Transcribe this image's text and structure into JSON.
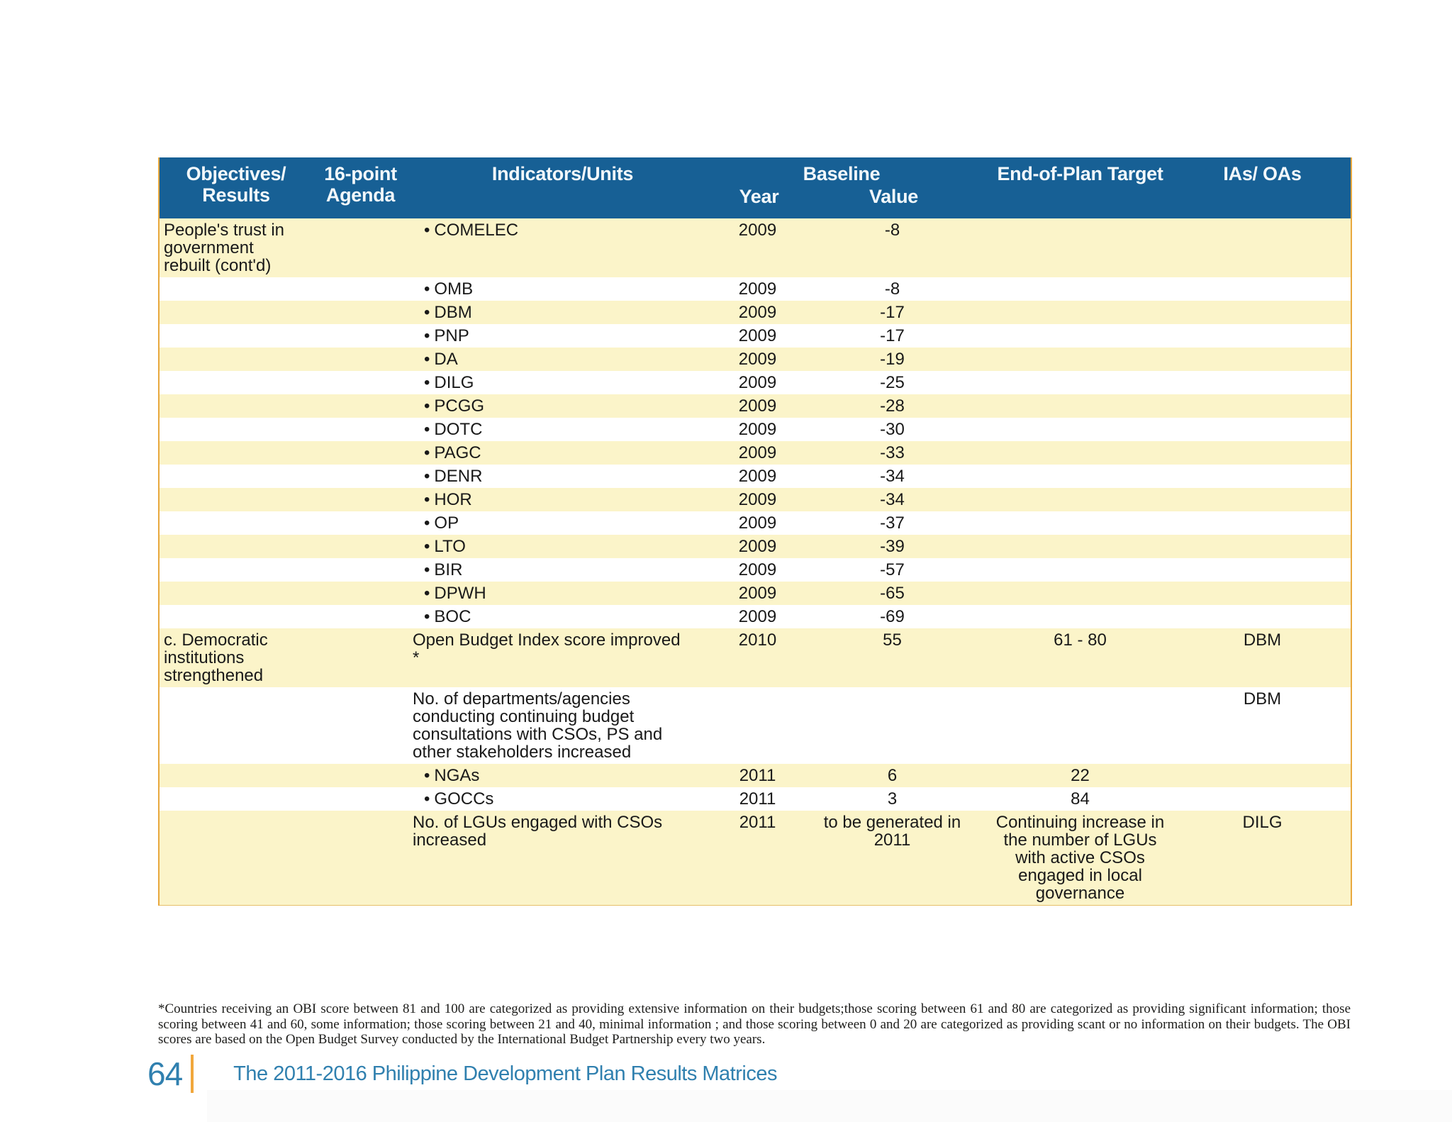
{
  "document": {
    "table": {
      "header": {
        "objectives": "Objectives/\nResults",
        "agenda": "16-point\nAgenda",
        "indicators": "Indicators/Units",
        "baseline": "Baseline",
        "year": "Year",
        "value": "Value",
        "target": "End-of-Plan Target",
        "ias": "IAs/ OAs"
      },
      "rows": [
        {
          "objective": "People's trust in government rebuilt (cont'd)",
          "agenda": "",
          "indicator": "COMELEC",
          "bullet": true,
          "year": "2009",
          "value": "-8",
          "target": "",
          "ias": "",
          "shade": "yellow"
        },
        {
          "objective": "",
          "agenda": "",
          "indicator": "OMB",
          "bullet": true,
          "year": "2009",
          "value": "-8",
          "target": "",
          "ias": "",
          "shade": "white"
        },
        {
          "objective": "",
          "agenda": "",
          "indicator": "DBM",
          "bullet": true,
          "year": "2009",
          "value": "-17",
          "target": "",
          "ias": "",
          "shade": "yellow"
        },
        {
          "objective": "",
          "agenda": "",
          "indicator": "PNP",
          "bullet": true,
          "year": "2009",
          "value": "-17",
          "target": "",
          "ias": "",
          "shade": "white"
        },
        {
          "objective": "",
          "agenda": "",
          "indicator": "DA",
          "bullet": true,
          "year": "2009",
          "value": "-19",
          "target": "",
          "ias": "",
          "shade": "yellow"
        },
        {
          "objective": "",
          "agenda": "",
          "indicator": "DILG",
          "bullet": true,
          "year": "2009",
          "value": "-25",
          "target": "",
          "ias": "",
          "shade": "white"
        },
        {
          "objective": "",
          "agenda": "",
          "indicator": "PCGG",
          "bullet": true,
          "year": "2009",
          "value": "-28",
          "target": "",
          "ias": "",
          "shade": "yellow"
        },
        {
          "objective": "",
          "agenda": "",
          "indicator": "DOTC",
          "bullet": true,
          "year": "2009",
          "value": "-30",
          "target": "",
          "ias": "",
          "shade": "white"
        },
        {
          "objective": "",
          "agenda": "",
          "indicator": "PAGC",
          "bullet": true,
          "year": "2009",
          "value": "-33",
          "target": "",
          "ias": "",
          "shade": "yellow"
        },
        {
          "objective": "",
          "agenda": "",
          "indicator": "DENR",
          "bullet": true,
          "year": "2009",
          "value": "-34",
          "target": "",
          "ias": "",
          "shade": "white"
        },
        {
          "objective": "",
          "agenda": "",
          "indicator": "HOR",
          "bullet": true,
          "year": "2009",
          "value": "-34",
          "target": "",
          "ias": "",
          "shade": "yellow"
        },
        {
          "objective": "",
          "agenda": "",
          "indicator": "OP",
          "bullet": true,
          "year": "2009",
          "value": "-37",
          "target": "",
          "ias": "",
          "shade": "white"
        },
        {
          "objective": "",
          "agenda": "",
          "indicator": "LTO",
          "bullet": true,
          "year": "2009",
          "value": "-39",
          "target": "",
          "ias": "",
          "shade": "yellow"
        },
        {
          "objective": "",
          "agenda": "",
          "indicator": "BIR",
          "bullet": true,
          "year": "2009",
          "value": "-57",
          "target": "",
          "ias": "",
          "shade": "white"
        },
        {
          "objective": "",
          "agenda": "",
          "indicator": "DPWH",
          "bullet": true,
          "year": "2009",
          "value": "-65",
          "target": "",
          "ias": "",
          "shade": "yellow"
        },
        {
          "objective": "",
          "agenda": "",
          "indicator": "BOC",
          "bullet": true,
          "year": "2009",
          "value": "-69",
          "target": "",
          "ias": "",
          "shade": "white"
        },
        {
          "objective": "c. Democratic institutions strengthened",
          "agenda": "",
          "indicator": "Open Budget Index score improved *",
          "bullet": false,
          "year": "2010",
          "value": "55",
          "target": "61 - 80",
          "ias": "DBM",
          "shade": "yellow"
        },
        {
          "objective": "",
          "agenda": "",
          "indicator": "No. of departments/agencies conducting continuing budget consultations with CSOs, PS and other stakeholders increased",
          "bullet": false,
          "year": "",
          "value": "",
          "target": "",
          "ias": "DBM",
          "shade": "white"
        },
        {
          "objective": "",
          "agenda": "",
          "indicator": "NGAs",
          "bullet": true,
          "year": "2011",
          "value": "6",
          "target": "22",
          "ias": "",
          "shade": "yellow"
        },
        {
          "objective": "",
          "agenda": "",
          "indicator": "GOCCs",
          "bullet": true,
          "year": "2011",
          "value": "3",
          "target": "84",
          "ias": "",
          "shade": "white"
        },
        {
          "objective": "",
          "agenda": "",
          "indicator": "No. of LGUs engaged with CSOs increased",
          "bullet": false,
          "year": "2011",
          "value": "to be generated in 2011",
          "target": "Continuing increase in the number of LGUs with active CSOs engaged in local governance",
          "ias": "DILG",
          "shade": "yellow"
        }
      ]
    },
    "footnote": "*Countries receiving an OBI score between 81 and 100 are categorized as providing extensive information on their budgets;those scoring between 61 and 80 are categorized as providing significant information; those scoring between 41 and 60, some information; those scoring between 21 and 40, minimal information ; and those scoring between 0 and 20 are categorized as providing scant or no information on their budgets. The OBI scores are based on the Open Budget Survey conducted by the International Budget Partnership every two years.",
    "footer": {
      "page_number": "64",
      "title": "The 2011-2016 Philippine Development Plan Results Matrices"
    },
    "colors": {
      "header_bg": "#176095",
      "row_yellow": "#FBF4C9",
      "row_white": "#FFFFFF",
      "border_gold": "#E8A83E",
      "footer_blue": "#3080AF",
      "footer_bar_gold": "#F1A73C"
    }
  }
}
